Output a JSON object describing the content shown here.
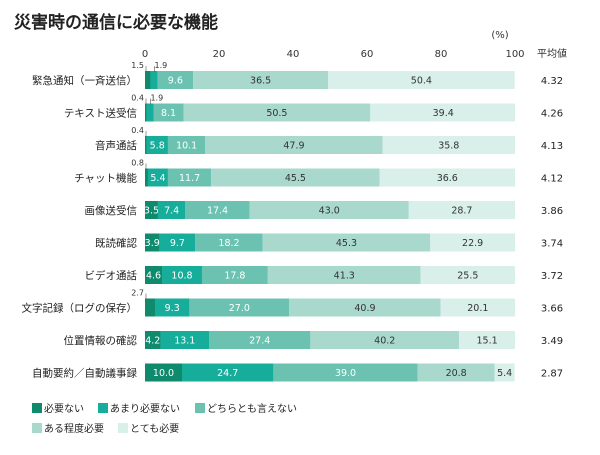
{
  "chart_data": {
    "type": "bar",
    "orientation": "horizontal",
    "stacked": true,
    "title": "災害時の通信に必要な機能",
    "unit_label": "(%)",
    "avg_header": "平均値",
    "xlim": [
      0,
      100
    ],
    "xticks": [
      0,
      20,
      40,
      60,
      80,
      100
    ],
    "grid": false,
    "legend_position": "bottom-left",
    "categories": [
      "緊急通知（一斉送信）",
      "テキスト送受信",
      "音声通話",
      "チャット機能",
      "画像送受信",
      "既読確認",
      "ビデオ通話",
      "文字記録（ログの保存）",
      "位置情報の確認",
      "自動要約／自動議事録"
    ],
    "averages": [
      "4.32",
      "4.26",
      "4.13",
      "4.12",
      "3.86",
      "3.74",
      "3.72",
      "3.66",
      "3.49",
      "2.87"
    ],
    "series": [
      {
        "name": "必要ない",
        "color": "#0f8a6c",
        "values": [
          1.5,
          0.4,
          0.4,
          0.8,
          3.5,
          3.9,
          4.6,
          2.7,
          4.2,
          10.0
        ]
      },
      {
        "name": "あまり必要ない",
        "color": "#17ad9b",
        "values": [
          1.9,
          1.9,
          5.8,
          5.4,
          7.4,
          9.7,
          10.8,
          9.3,
          13.1,
          24.7
        ]
      },
      {
        "name": "どちらとも言えない",
        "color": "#6cc2b0",
        "values": [
          9.6,
          8.1,
          10.1,
          11.7,
          17.4,
          18.2,
          17.8,
          27.0,
          27.4,
          39.0
        ]
      },
      {
        "name": "ある程度必要",
        "color": "#a9d9cd",
        "values": [
          36.5,
          50.5,
          47.9,
          45.5,
          43.0,
          45.3,
          41.3,
          40.9,
          40.2,
          20.8
        ]
      },
      {
        "name": "とても必要",
        "color": "#d9efe9",
        "values": [
          50.4,
          39.4,
          35.8,
          36.6,
          28.7,
          22.9,
          25.5,
          20.1,
          15.1,
          5.4
        ]
      }
    ]
  }
}
